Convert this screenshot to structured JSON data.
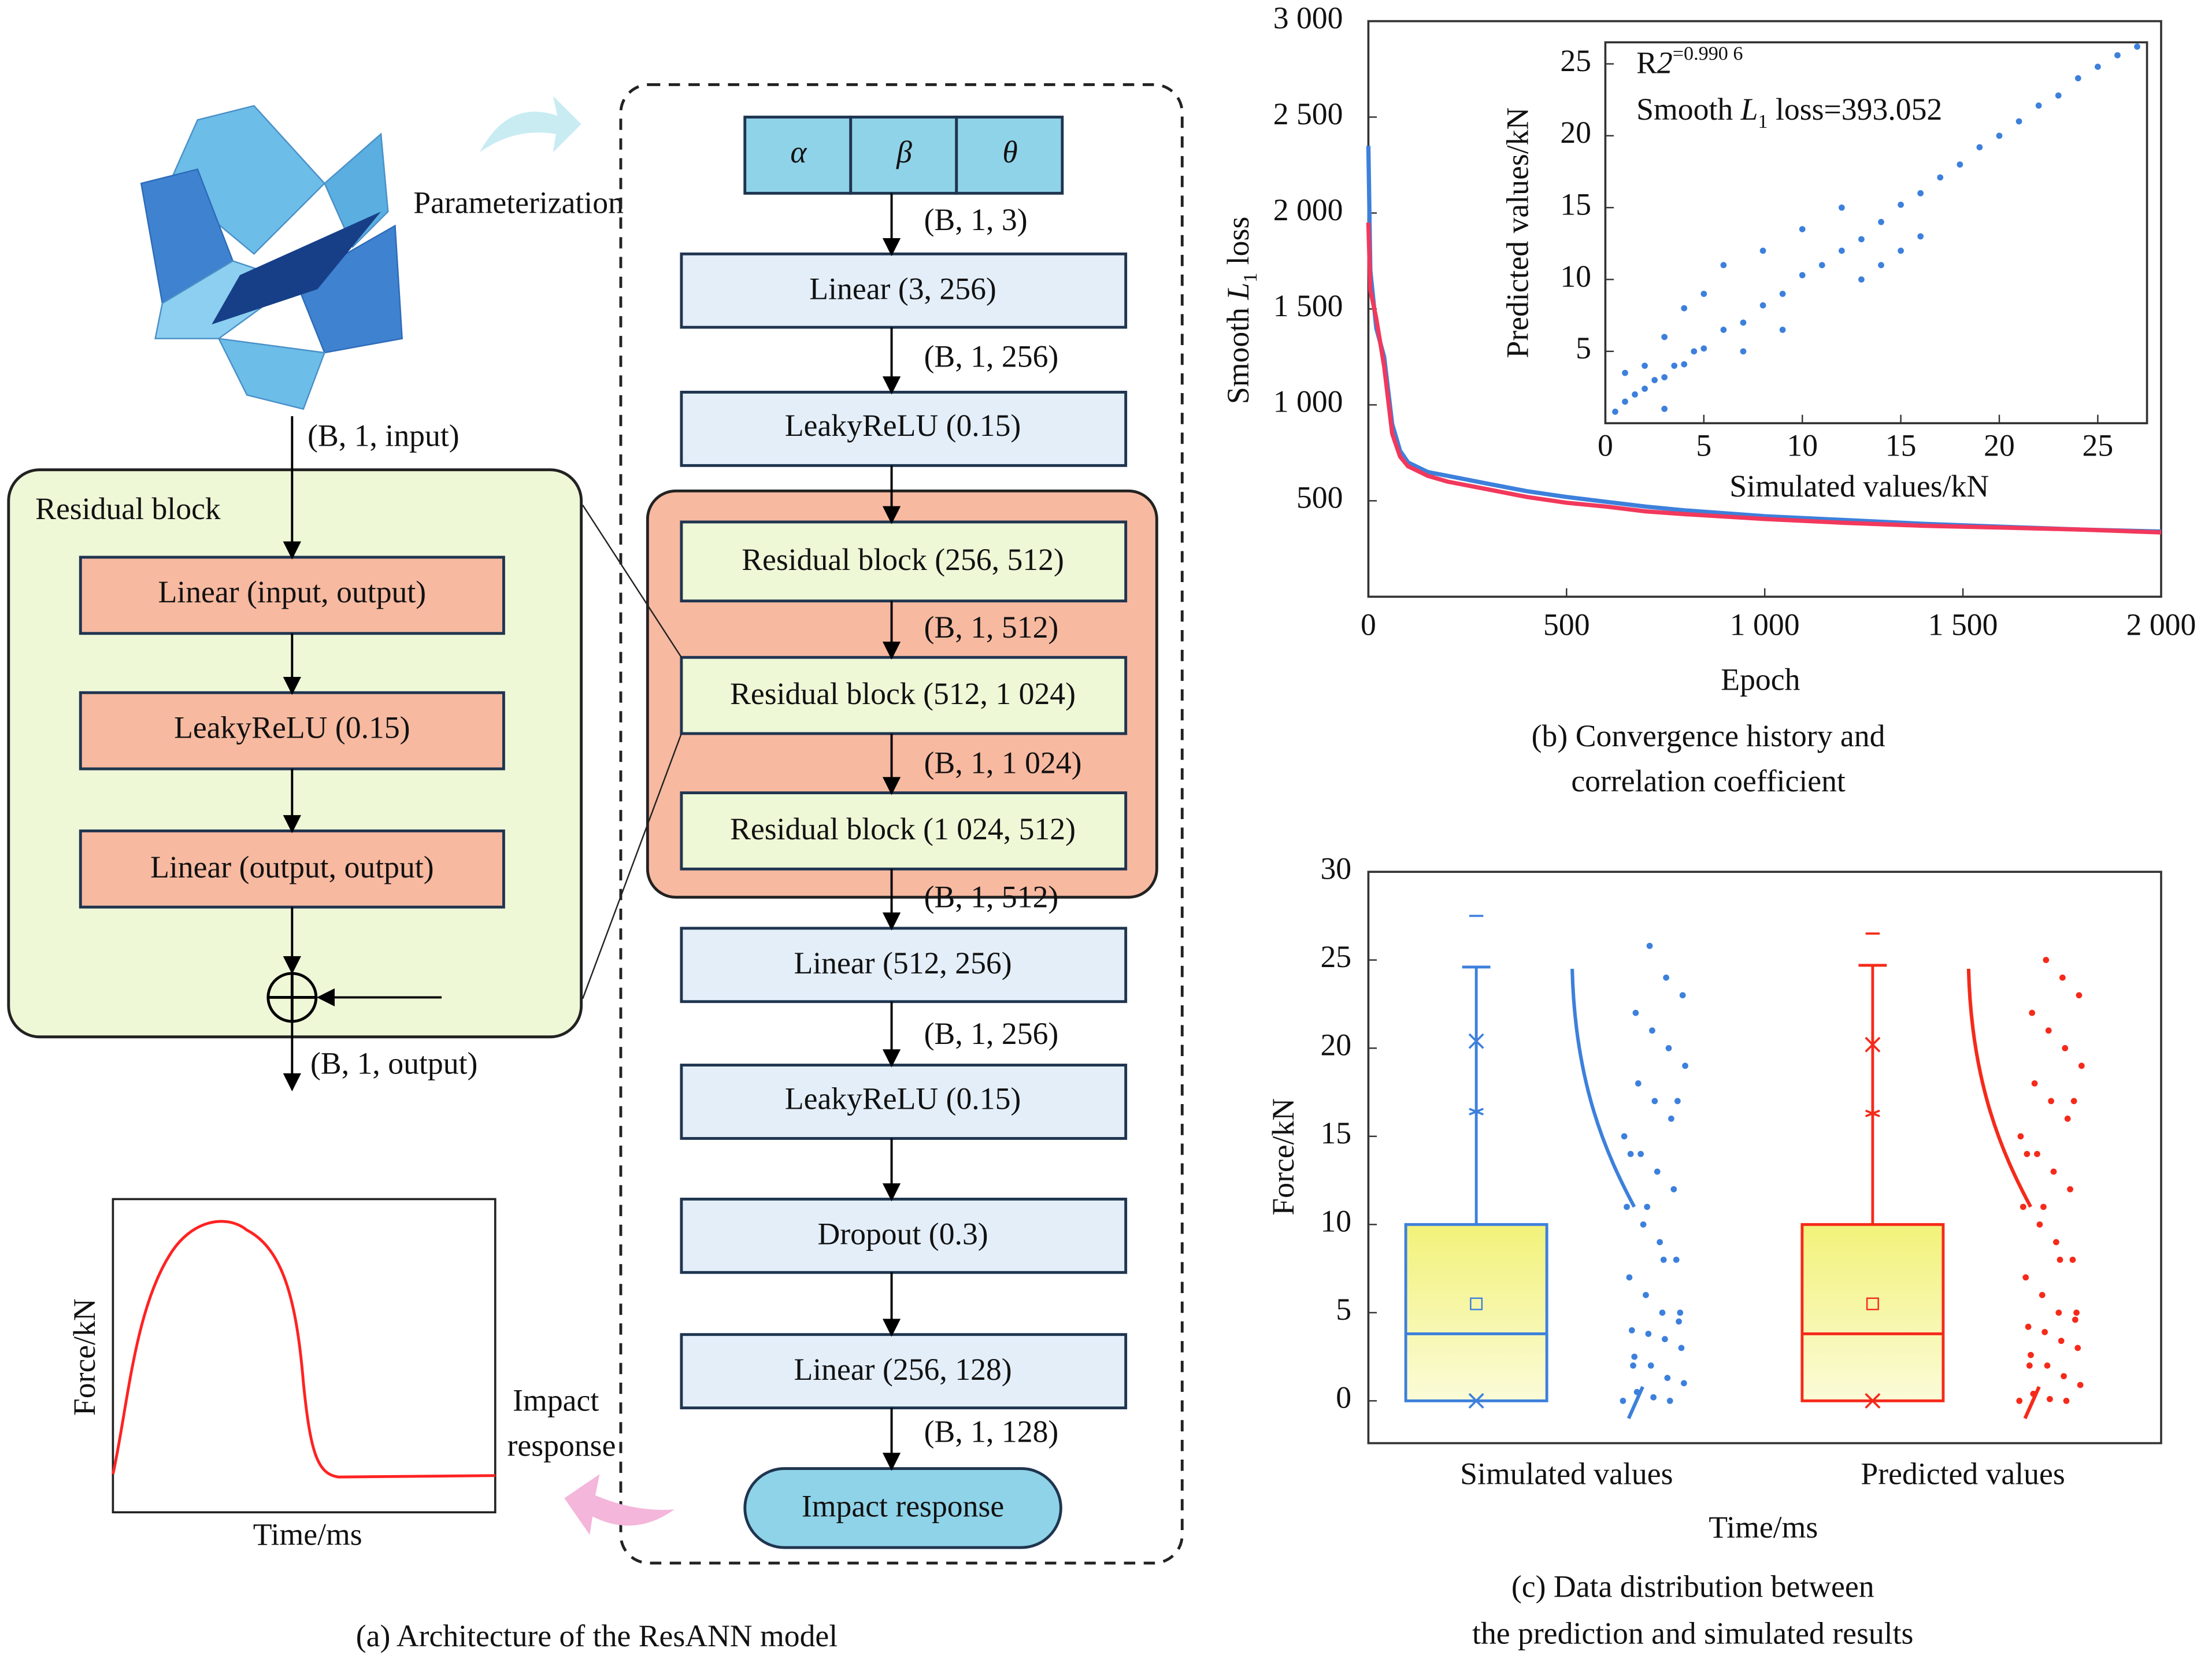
{
  "diagram": {
    "input_label": "Parameterization",
    "residual_block": {
      "shape_in": "(B, 1, input)",
      "title": "Residual block",
      "layers": [
        "Linear (input, output)",
        "LeakyReLU (0.15)",
        "Linear (output, output)"
      ],
      "shape_out": "(B, 1, output)"
    },
    "inputs": [
      "α",
      "β",
      "θ"
    ],
    "layers": [
      "Linear (3, 256)",
      "LeakyReLU (0.15)",
      "Residual block (256, 512)",
      "Residual block (512, 1 024)",
      "Residual block (1 024, 512)",
      "Linear (512, 256)",
      "LeakyReLU (0.15)",
      "Dropout (0.3)",
      "Linear (256, 128)",
      "Impact response"
    ],
    "shapes": [
      "(B, 1, 3)",
      "(B, 1, 256)",
      "(B, 1, 512)",
      "(B, 1, 1 024)",
      "(B, 1, 512)",
      "(B, 1, 256)",
      "(B, 1, 128)"
    ],
    "output_label": [
      "Impact",
      "response"
    ],
    "response_plot": {
      "ylabel": "Force/kN",
      "xlabel": "Time/ms"
    },
    "caption": "(a) Architecture of the ResANN model"
  },
  "chart_data": [
    {
      "type": "line",
      "ylabel_parts": [
        "Smooth ",
        "L",
        "1",
        " loss"
      ],
      "xlabel": "Epoch",
      "caption": [
        "(b) Convergence history and",
        "correlation coefficient"
      ],
      "x": [
        0,
        5,
        20,
        40,
        60,
        80,
        100,
        150,
        200,
        300,
        400,
        500,
        600,
        700,
        800,
        1000,
        1200,
        1400,
        1600,
        1800,
        2000
      ],
      "series": [
        {
          "color": "#3d80dc",
          "values": [
            2350,
            1700,
            1400,
            1250,
            900,
            760,
            700,
            650,
            630,
            590,
            550,
            520,
            495,
            470,
            450,
            420,
            400,
            380,
            365,
            350,
            340
          ]
        },
        {
          "color": "#f2385c",
          "values": [
            1950,
            1600,
            1450,
            1200,
            850,
            730,
            680,
            630,
            600,
            560,
            520,
            490,
            470,
            445,
            430,
            405,
            385,
            370,
            360,
            350,
            335
          ]
        }
      ],
      "xlim": [
        0,
        2000
      ],
      "ylim": [
        0,
        3000
      ],
      "xticks": [
        0,
        500,
        {
          "value": 1000,
          "label": "1 000"
        },
        {
          "value": 1500,
          "label": "1 500"
        },
        {
          "value": 2000,
          "label": "2 000"
        }
      ],
      "yticks": [
        500,
        {
          "value": 1000,
          "label": "1 000"
        },
        {
          "value": 1500,
          "label": "1 500"
        },
        {
          "value": 2000,
          "label": "2 000"
        },
        {
          "value": 2500,
          "label": "2 500"
        },
        {
          "value": 3000,
          "label": "3 000"
        }
      ]
    },
    {
      "type": "scatter",
      "xlabel": "Simulated values/kN",
      "ylabel": "Predicted values/kN",
      "annotations": [
        [
          "R",
          "2",
          "=0.990 6"
        ],
        [
          "Smooth ",
          "L",
          "1",
          " loss=393.052"
        ]
      ],
      "color": "#3d80dc",
      "x": [
        0.5,
        1,
        1.5,
        2,
        2.5,
        3,
        3.5,
        4,
        4.5,
        5,
        6,
        7,
        8,
        9,
        10,
        11,
        12,
        13,
        14,
        15,
        16,
        17,
        18,
        19,
        20,
        21,
        22,
        23,
        24,
        25,
        26,
        27,
        2,
        3,
        4,
        5,
        6,
        8,
        10,
        12,
        14,
        16,
        1,
        3,
        7,
        9,
        13,
        15
      ],
      "y": [
        0.8,
        1.5,
        2,
        2.4,
        3,
        3.2,
        4,
        4.1,
        5,
        5.2,
        6.5,
        7,
        8.2,
        9,
        10.3,
        11,
        12,
        12.8,
        14,
        15.2,
        16,
        17.1,
        18,
        19.2,
        20,
        21,
        22.1,
        22.8,
        24,
        24.8,
        25.6,
        26.2,
        4,
        6,
        8,
        9,
        11,
        12,
        13.5,
        15,
        11,
        13,
        3.5,
        1,
        5,
        6.5,
        10,
        12
      ],
      "xlim": [
        0,
        27.5
      ],
      "ylim": [
        0,
        26.5
      ],
      "xticks": [
        0,
        5,
        10,
        15,
        20,
        25
      ],
      "yticks": [
        5,
        10,
        15,
        20,
        25
      ]
    },
    {
      "type": "box",
      "ylabel": "Force/kN",
      "xlabel": "Time/ms",
      "caption": [
        "(c) Data distribution between",
        "the prediction and simulated results"
      ],
      "categories": [
        "Simulated values",
        "Predicted values"
      ],
      "ylim": [
        -2.4,
        30
      ],
      "yticks": [
        0,
        5,
        10,
        15,
        20,
        25,
        30
      ],
      "boxes": [
        {
          "color": "#3d80dc",
          "q1": 0,
          "median": 3.8,
          "q3": 10,
          "mean": 5.5,
          "whisker_low": 0,
          "whisker_high": 24.6,
          "p99": 20.4,
          "p1": 0,
          "p95": 16.4,
          "max": 27.5,
          "points": [
            0,
            0,
            0.2,
            0.5,
            1,
            1.3,
            2,
            2.5,
            3,
            3.5,
            3.8,
            4,
            4.5,
            5,
            6,
            7,
            8,
            9,
            10,
            11,
            12,
            13,
            14,
            15,
            16,
            17,
            18,
            19,
            20,
            21,
            22,
            23,
            24,
            25.8,
            2,
            5,
            8,
            11,
            14,
            17
          ]
        },
        {
          "color": "#f52a1a",
          "q1": 0,
          "median": 3.8,
          "q3": 10,
          "mean": 5.5,
          "whisker_low": 0,
          "whisker_high": 24.7,
          "p99": 20.2,
          "p1": 0,
          "p95": 16.3,
          "max": 26.5,
          "points": [
            0,
            0,
            0.1,
            0.4,
            0.9,
            1.4,
            2,
            2.6,
            3,
            3.4,
            3.9,
            4.2,
            4.6,
            5,
            6,
            7,
            8,
            9,
            10,
            11,
            12,
            13,
            14,
            15,
            16,
            17,
            18,
            19,
            20,
            21,
            22,
            23,
            24,
            25,
            2,
            5,
            8,
            11,
            14,
            17
          ]
        }
      ]
    }
  ]
}
